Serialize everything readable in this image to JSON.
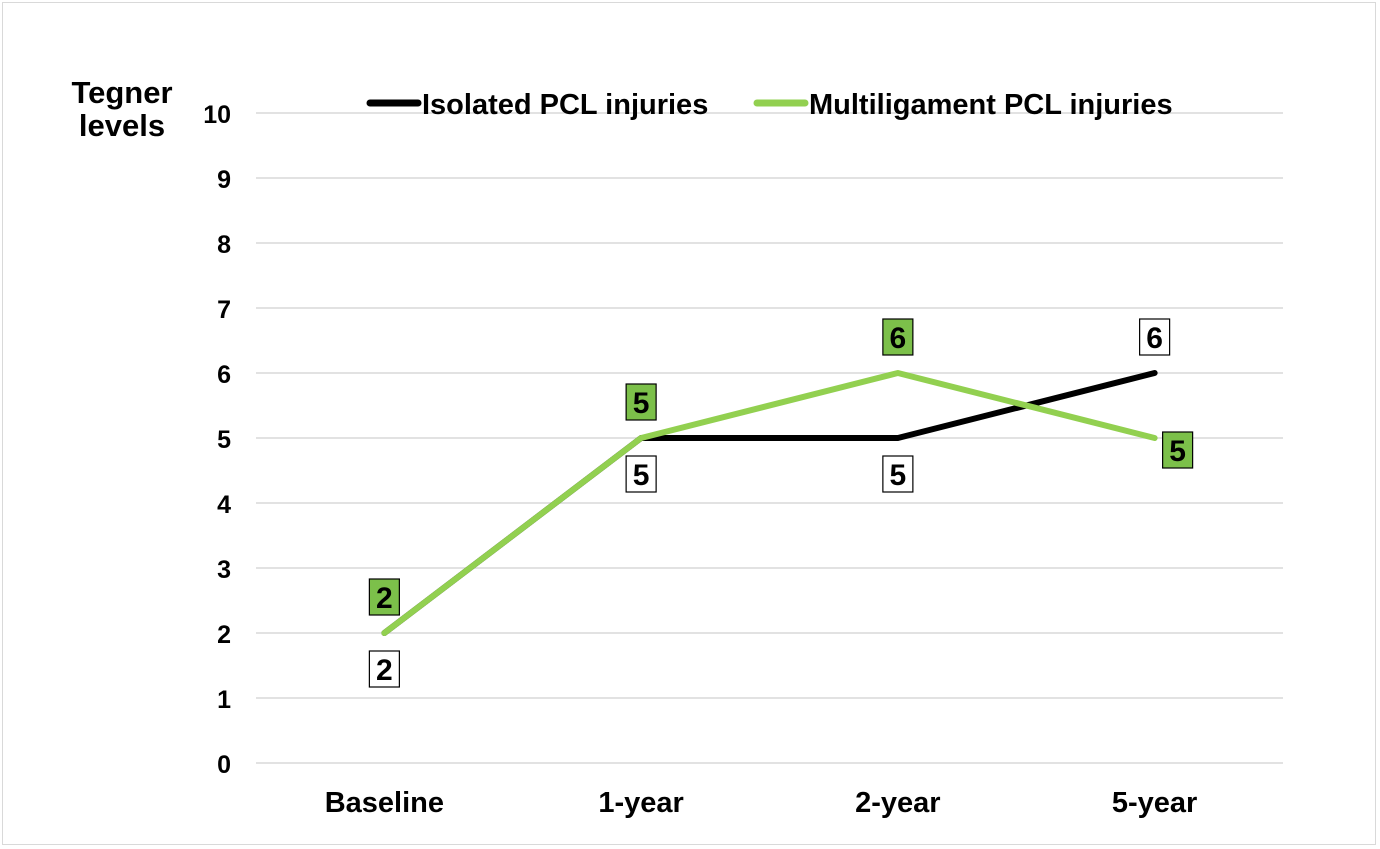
{
  "chart_data": {
    "type": "line",
    "ylabel_lines": [
      "Tegner",
      "levels"
    ],
    "categories": [
      "Baseline",
      "1-year",
      "2-year",
      "5-year"
    ],
    "ylim": [
      0,
      10
    ],
    "yticks": [
      "0",
      "1",
      "2",
      "3",
      "4",
      "5",
      "6",
      "7",
      "8",
      "9",
      "10"
    ],
    "grid": true,
    "legend_position": "top",
    "series": [
      {
        "name": "Isolated PCL injuries",
        "values": [
          2,
          5,
          5,
          6
        ],
        "color": "#000000",
        "label_fill": "#ffffff",
        "label_position": [
          "below",
          "below",
          "below",
          "above"
        ]
      },
      {
        "name": "Multiligament PCL injuries",
        "values": [
          2,
          5,
          6,
          5
        ],
        "color": "#92d050",
        "label_fill": "#7cc04a",
        "label_position": [
          "above",
          "above",
          "above",
          "right"
        ]
      }
    ]
  }
}
